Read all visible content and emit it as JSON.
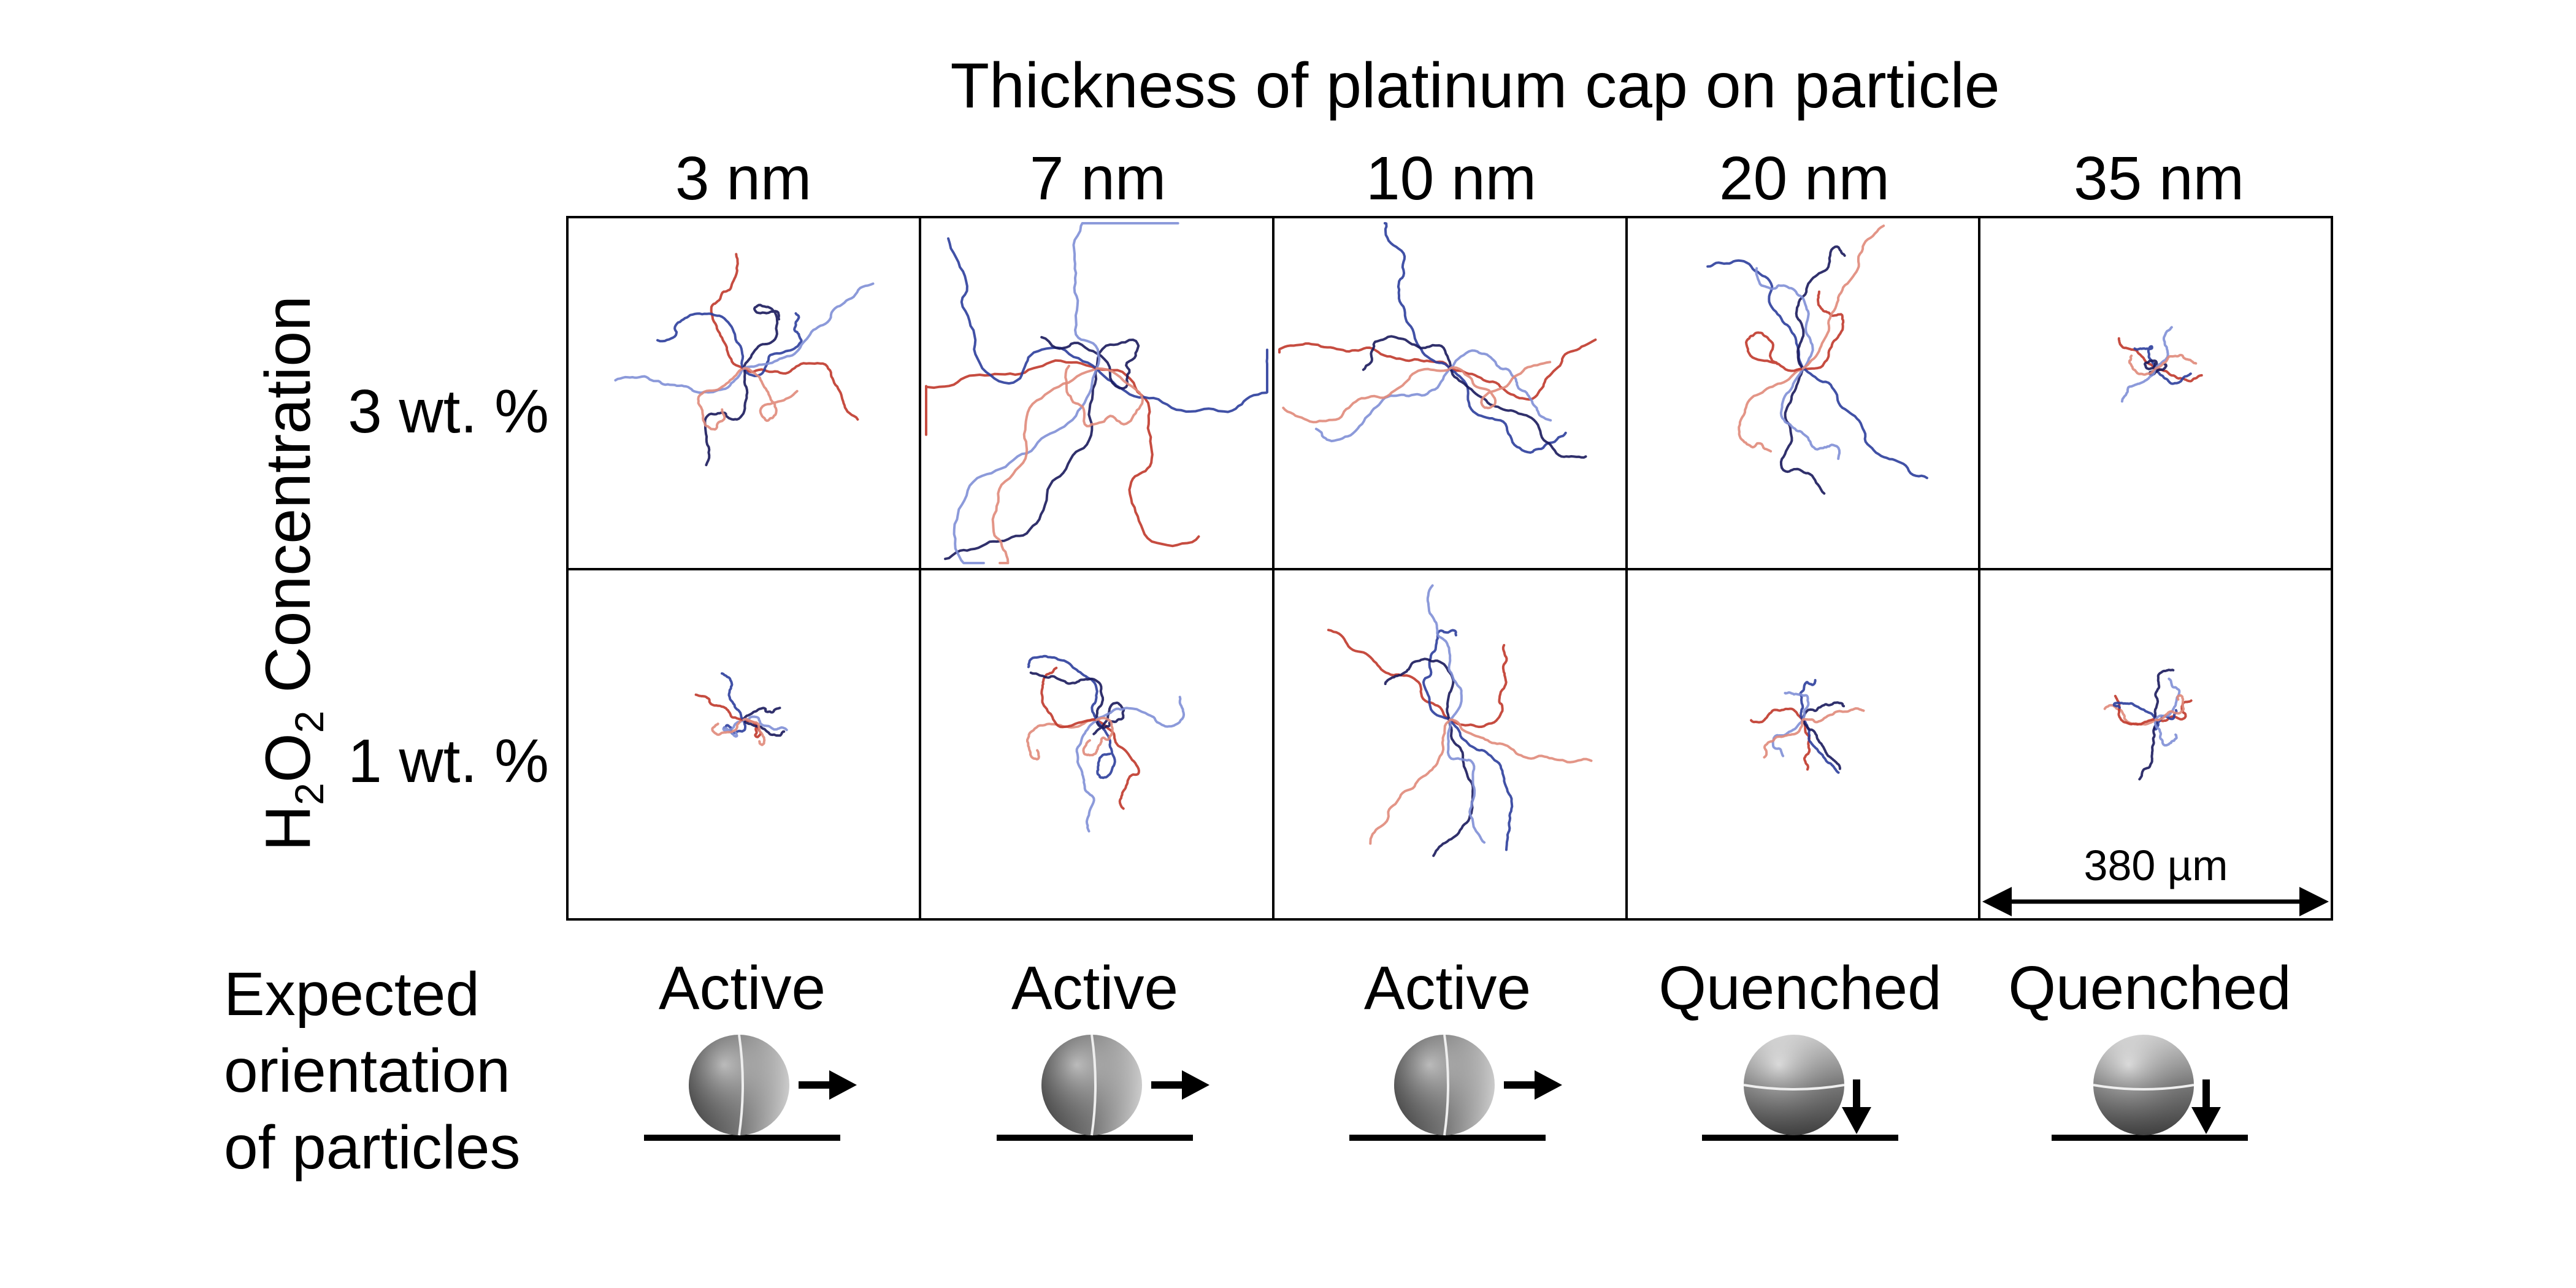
{
  "title": "Thickness of platinum cap on particle",
  "columns": [
    "3 nm",
    "7 nm",
    "10 nm",
    "20 nm",
    "35 nm"
  ],
  "y_axis_label": {
    "prefix": "H",
    "sub1": "2",
    "mid": "O",
    "sub2": "2",
    "suffix": " Concentration"
  },
  "rows": [
    "3 wt. %",
    "1 wt. %"
  ],
  "scale_bar": {
    "label": "380 µm",
    "value_um": 380
  },
  "orientation": {
    "label_lines": [
      "Expected",
      "orientation",
      "of particles"
    ],
    "states": [
      "Active",
      "Active",
      "Active",
      "Quenched",
      "Quenched"
    ],
    "motion": [
      "right",
      "right",
      "right",
      "down",
      "down"
    ]
  },
  "trajectory_extent": [
    [
      0.22,
      0.42,
      0.26,
      0.24,
      0.07
    ],
    [
      0.08,
      0.18,
      0.22,
      0.09,
      0.09
    ]
  ],
  "colors": {
    "grid": "#000000",
    "trajectory_red": "#c0392b",
    "trajectory_blue": "#2c3e9c",
    "trajectory_dark": "#1a1a5c",
    "trajectory_light_blue": "#7f8fd6",
    "trajectory_light_red": "#e08a7a",
    "sphere_light": "#f2f2f2",
    "sphere_dark": "#3a3a3a"
  }
}
